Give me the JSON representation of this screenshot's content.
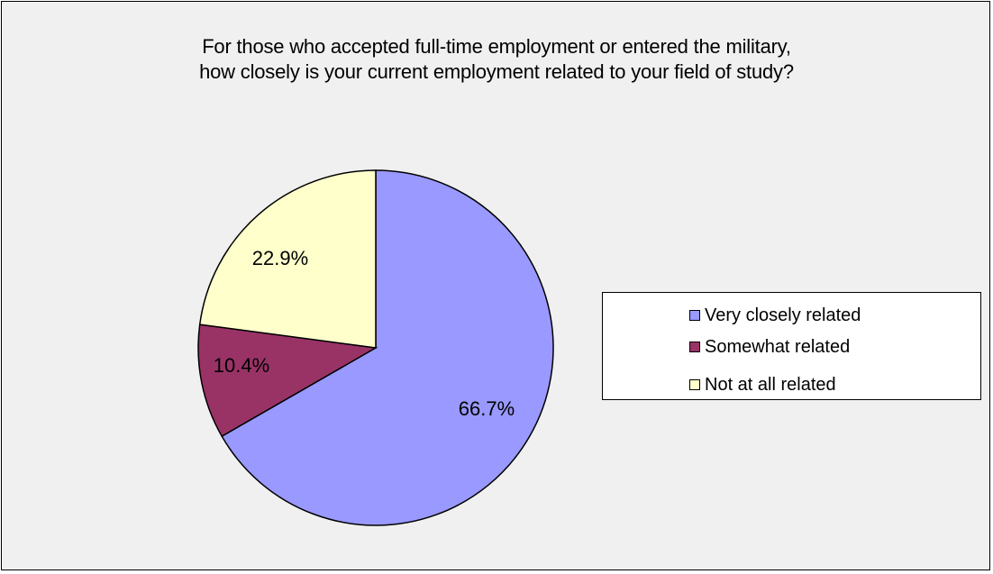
{
  "chart_data": {
    "type": "pie",
    "title_lines": [
      "For those who accepted full-time employment or entered the military,",
      "how closely is your current employment related to your field of study?"
    ],
    "legend_position": "right",
    "slices": [
      {
        "label": "Very closely related",
        "value": 66.7,
        "display": "66.7%",
        "color": "#9999ff"
      },
      {
        "label": "Somewhat related",
        "value": 10.4,
        "display": "10.4%",
        "color": "#993366"
      },
      {
        "label": "Not at all related",
        "value": 22.9,
        "display": "22.9%",
        "color": "#ffffcc"
      }
    ]
  }
}
